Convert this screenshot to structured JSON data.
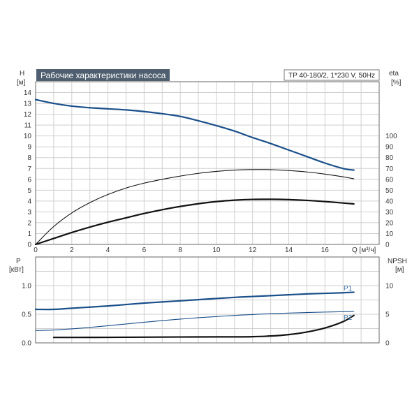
{
  "chart_data": [
    {
      "type": "line",
      "title": "Рабочие характеристики насоса",
      "model": "TP 40-180/2, 1*230 V, 50Hz",
      "xlabel": "Q [м³/ч]",
      "ylabel_left": "H",
      "ylabel_left_unit": "[м]",
      "ylabel_right": "eta",
      "ylabel_right_unit": "[%]",
      "xlim": [
        0,
        19
      ],
      "ylim_left": [
        0,
        15
      ],
      "ylim_right": [
        0,
        150
      ],
      "x_ticks": [
        "0",
        "2",
        "4",
        "6",
        "8",
        "10",
        "12",
        "14",
        "16"
      ],
      "y_left_ticks": [
        "0",
        "1",
        "2",
        "3",
        "4",
        "5",
        "6",
        "7",
        "8",
        "9",
        "10",
        "11",
        "12",
        "13",
        "14"
      ],
      "y_right_ticks": [
        "0",
        "10",
        "20",
        "30",
        "40",
        "50",
        "60",
        "70",
        "80",
        "90",
        "100"
      ],
      "grid": true,
      "series": [
        {
          "axis": "left",
          "color": "#1a4f8a",
          "style": "thick",
          "points": [
            [
              0,
              13.35
            ],
            [
              1,
              13.0
            ],
            [
              2,
              12.75
            ],
            [
              3,
              12.6
            ],
            [
              4,
              12.5
            ],
            [
              5,
              12.4
            ],
            [
              6,
              12.25
            ],
            [
              7,
              12.05
            ],
            [
              8,
              11.8
            ],
            [
              9,
              11.4
            ],
            [
              10,
              10.95
            ],
            [
              11,
              10.45
            ],
            [
              12,
              9.85
            ],
            [
              13,
              9.3
            ],
            [
              14,
              8.7
            ],
            [
              15,
              8.1
            ],
            [
              16,
              7.5
            ],
            [
              17,
              7.0
            ],
            [
              17.6,
              6.85
            ]
          ]
        },
        {
          "axis": "right",
          "color": "#111111",
          "style": "thin",
          "points": [
            [
              0,
              0
            ],
            [
              1,
              16.5
            ],
            [
              2,
              29
            ],
            [
              3,
              38.5
            ],
            [
              4,
              46
            ],
            [
              5,
              52
            ],
            [
              6,
              56.5
            ],
            [
              7,
              60
            ],
            [
              8,
              63
            ],
            [
              9,
              65.5
            ],
            [
              10,
              67.3
            ],
            [
              11,
              68.5
            ],
            [
              12,
              69
            ],
            [
              13,
              68.9
            ],
            [
              14,
              68.1
            ],
            [
              15,
              66.8
            ],
            [
              16,
              64.8
            ],
            [
              17,
              62.3
            ],
            [
              17.6,
              60.5
            ]
          ]
        },
        {
          "axis": "right",
          "color": "#111111",
          "style": "thick",
          "points": [
            [
              0,
              0
            ],
            [
              1,
              5.5
            ],
            [
              2,
              11
            ],
            [
              3,
              16
            ],
            [
              4,
              20.5
            ],
            [
              5,
              24.5
            ],
            [
              6,
              28.5
            ],
            [
              7,
              32
            ],
            [
              8,
              35
            ],
            [
              9,
              37.5
            ],
            [
              10,
              39.5
            ],
            [
              11,
              40.8
            ],
            [
              12,
              41.5
            ],
            [
              13,
              41.6
            ],
            [
              14,
              41.3
            ],
            [
              15,
              40.6
            ],
            [
              16,
              39.5
            ],
            [
              17,
              38.2
            ],
            [
              17.6,
              37.3
            ]
          ]
        }
      ]
    },
    {
      "type": "line",
      "ylabel_left": "P",
      "ylabel_left_unit": "[кВт]",
      "ylabel_right": "NPSH",
      "ylabel_right_unit": "[м]",
      "xlim": [
        0,
        19
      ],
      "ylim_left": [
        0,
        1.5
      ],
      "ylim_right": [
        0,
        15
      ],
      "y_left_ticks": [
        "0.0",
        "0.5",
        "1.0"
      ],
      "y_right_ticks": [
        "0",
        "5",
        "10"
      ],
      "grid": true,
      "series": [
        {
          "name": "P1",
          "axis": "left",
          "color": "#1a4f8a",
          "style": "thick",
          "points": [
            [
              0,
              0.585
            ],
            [
              1,
              0.585
            ],
            [
              2,
              0.605
            ],
            [
              3,
              0.625
            ],
            [
              4,
              0.645
            ],
            [
              5,
              0.67
            ],
            [
              6,
              0.695
            ],
            [
              7,
              0.715
            ],
            [
              8,
              0.735
            ],
            [
              9,
              0.755
            ],
            [
              10,
              0.775
            ],
            [
              11,
              0.795
            ],
            [
              12,
              0.81
            ],
            [
              13,
              0.825
            ],
            [
              14,
              0.84
            ],
            [
              15,
              0.855
            ],
            [
              16,
              0.865
            ],
            [
              17,
              0.875
            ],
            [
              17.6,
              0.885
            ]
          ]
        },
        {
          "name": "P2",
          "axis": "left",
          "color": "#1a4f8a",
          "style": "thin",
          "points": [
            [
              0,
              0.215
            ],
            [
              1,
              0.225
            ],
            [
              2,
              0.245
            ],
            [
              3,
              0.27
            ],
            [
              4,
              0.3
            ],
            [
              5,
              0.33
            ],
            [
              6,
              0.36
            ],
            [
              7,
              0.39
            ],
            [
              8,
              0.415
            ],
            [
              9,
              0.44
            ],
            [
              10,
              0.46
            ],
            [
              11,
              0.48
            ],
            [
              12,
              0.495
            ],
            [
              13,
              0.51
            ],
            [
              14,
              0.52
            ],
            [
              15,
              0.53
            ],
            [
              16,
              0.538
            ],
            [
              17,
              0.545
            ],
            [
              17.6,
              0.55
            ]
          ]
        },
        {
          "axis": "right",
          "color": "#111111",
          "style": "thick",
          "points": [
            [
              1,
              0.95
            ],
            [
              2,
              0.95
            ],
            [
              4,
              0.97
            ],
            [
              6,
              1.0
            ],
            [
              8,
              1.03
            ],
            [
              10,
              1.05
            ],
            [
              11,
              1.05
            ],
            [
              12,
              1.08
            ],
            [
              13,
              1.2
            ],
            [
              14,
              1.45
            ],
            [
              15,
              1.9
            ],
            [
              16,
              2.6
            ],
            [
              17,
              3.7
            ],
            [
              17.6,
              4.8
            ]
          ]
        }
      ]
    }
  ]
}
